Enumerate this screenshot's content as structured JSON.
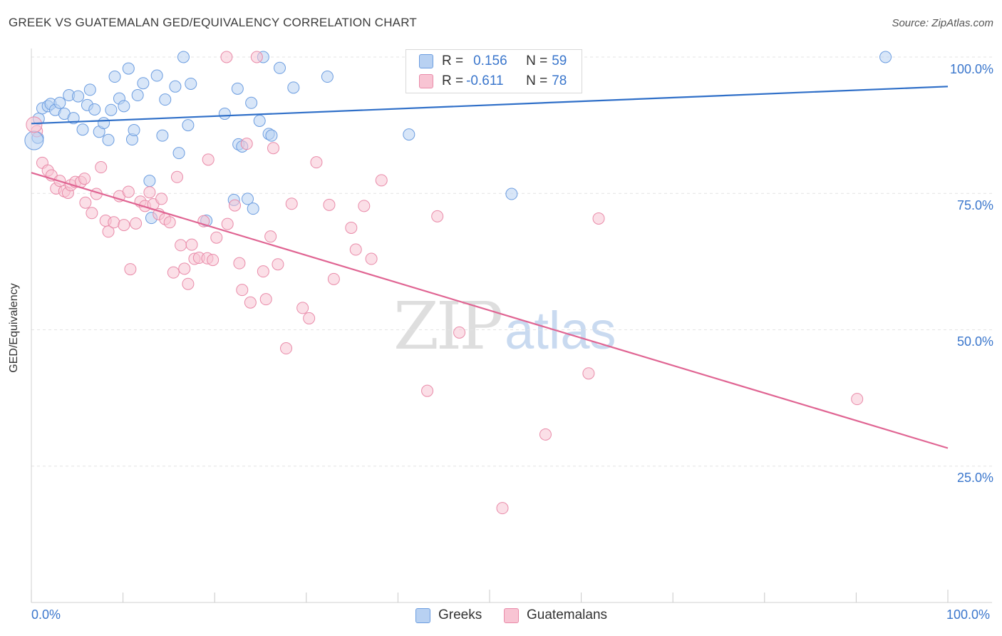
{
  "title": "GREEK VS GUATEMALAN GED/EQUIVALENCY CORRELATION CHART",
  "source": "Source: ZipAtlas.com",
  "watermark": {
    "zip": "ZIP",
    "atlas": "atlas"
  },
  "legend_top": {
    "rows": [
      {
        "r_label": "R = ",
        "r_value": "0.156",
        "n_label": "N = ",
        "n_value": "59",
        "color": "#6c9de0"
      },
      {
        "r_label": "R = ",
        "r_value": "-0.611",
        "n_label": "N = ",
        "n_value": "78",
        "color": "#e98ba9"
      }
    ]
  },
  "bottom_legend": {
    "greeks": "Greeks",
    "guatemalans": "Guatemalans"
  },
  "chart_data": {
    "type": "scatter",
    "title": "GREEK VS GUATEMALAN GED/EQUIVALENCY CORRELATION CHART",
    "xlabel": "",
    "ylabel": "GED/Equivalency",
    "xlim": [
      0,
      100
    ],
    "ylim": [
      0,
      100
    ],
    "x_tick_labels": [
      "0.0%",
      "100.0%"
    ],
    "y_tick_labels": [
      "100.0%",
      "75.0%",
      "50.0%",
      "25.0%"
    ],
    "y_ticks": [
      100,
      75,
      50,
      25
    ],
    "grid": true,
    "legend": "top-center",
    "series": [
      {
        "name": "Greeks",
        "color": "#6c9de0",
        "trend": {
          "x": [
            0,
            100
          ],
          "y": [
            87.8,
            94.6
          ]
        },
        "points": [
          [
            0.8,
            88.7
          ],
          [
            0.7,
            85.2
          ],
          [
            1.2,
            90.6
          ],
          [
            1.8,
            91.0
          ],
          [
            2.1,
            91.4
          ],
          [
            2.6,
            90.3
          ],
          [
            3.1,
            91.6
          ],
          [
            3.6,
            89.6
          ],
          [
            4.1,
            93.0
          ],
          [
            4.6,
            88.8
          ],
          [
            5.1,
            92.8
          ],
          [
            5.6,
            86.7
          ],
          [
            6.1,
            91.2
          ],
          [
            6.4,
            94.0
          ],
          [
            6.9,
            90.4
          ],
          [
            7.4,
            86.3
          ],
          [
            7.9,
            87.9
          ],
          [
            8.4,
            84.8
          ],
          [
            8.7,
            90.3
          ],
          [
            9.1,
            96.4
          ],
          [
            9.6,
            92.4
          ],
          [
            10.1,
            91.0
          ],
          [
            10.6,
            97.9
          ],
          [
            11.0,
            84.9
          ],
          [
            11.2,
            86.6
          ],
          [
            11.6,
            93.0
          ],
          [
            12.2,
            95.2
          ],
          [
            12.9,
            77.3
          ],
          [
            13.1,
            70.5
          ],
          [
            13.7,
            96.6
          ],
          [
            14.3,
            85.6
          ],
          [
            14.6,
            92.2
          ],
          [
            15.7,
            94.6
          ],
          [
            16.1,
            82.4
          ],
          [
            16.6,
            100.0
          ],
          [
            17.1,
            87.5
          ],
          [
            17.4,
            95.1
          ],
          [
            19.1,
            70.0
          ],
          [
            21.1,
            89.6
          ],
          [
            22.1,
            73.8
          ],
          [
            22.5,
            94.2
          ],
          [
            22.6,
            84.0
          ],
          [
            23.0,
            83.6
          ],
          [
            23.6,
            74.0
          ],
          [
            24.0,
            91.6
          ],
          [
            24.2,
            72.2
          ],
          [
            24.9,
            88.3
          ],
          [
            25.3,
            100.0
          ],
          [
            25.9,
            85.9
          ],
          [
            26.2,
            85.6
          ],
          [
            27.1,
            98.0
          ],
          [
            28.6,
            94.4
          ],
          [
            32.3,
            96.4
          ],
          [
            41.9,
            97.7
          ],
          [
            41.2,
            85.8
          ],
          [
            52.4,
            74.9
          ],
          [
            52.7,
            99.6
          ],
          [
            56.9,
            99.6
          ],
          [
            93.2,
            100.0
          ]
        ]
      },
      {
        "name": "Guatemalans",
        "color": "#e98ba9",
        "trend": {
          "x": [
            0,
            100
          ],
          "y": [
            78.8,
            28.3
          ]
        },
        "points": [
          [
            0.6,
            86.4
          ],
          [
            1.2,
            80.6
          ],
          [
            1.8,
            79.2
          ],
          [
            2.2,
            78.3
          ],
          [
            2.7,
            75.9
          ],
          [
            3.1,
            77.3
          ],
          [
            3.6,
            75.4
          ],
          [
            4.0,
            75.1
          ],
          [
            4.3,
            76.5
          ],
          [
            4.8,
            77.1
          ],
          [
            5.4,
            77.1
          ],
          [
            5.8,
            77.7
          ],
          [
            5.9,
            73.3
          ],
          [
            6.6,
            71.4
          ],
          [
            7.1,
            74.9
          ],
          [
            7.6,
            79.8
          ],
          [
            8.1,
            70.0
          ],
          [
            8.4,
            68.0
          ],
          [
            9.0,
            69.7
          ],
          [
            9.6,
            74.5
          ],
          [
            10.1,
            69.2
          ],
          [
            10.6,
            75.3
          ],
          [
            10.8,
            61.1
          ],
          [
            11.4,
            69.5
          ],
          [
            11.9,
            73.5
          ],
          [
            12.4,
            72.7
          ],
          [
            12.9,
            75.2
          ],
          [
            13.3,
            73.0
          ],
          [
            13.9,
            71.2
          ],
          [
            14.2,
            74.0
          ],
          [
            14.6,
            70.3
          ],
          [
            15.1,
            69.7
          ],
          [
            15.5,
            60.5
          ],
          [
            15.9,
            78.0
          ],
          [
            16.3,
            65.5
          ],
          [
            16.7,
            61.2
          ],
          [
            17.1,
            58.4
          ],
          [
            17.5,
            65.6
          ],
          [
            17.8,
            63.0
          ],
          [
            18.3,
            63.2
          ],
          [
            18.8,
            69.9
          ],
          [
            19.2,
            63.1
          ],
          [
            19.3,
            81.2
          ],
          [
            19.8,
            62.8
          ],
          [
            20.2,
            66.9
          ],
          [
            21.4,
            69.4
          ],
          [
            22.2,
            72.8
          ],
          [
            22.7,
            62.2
          ],
          [
            23.0,
            57.3
          ],
          [
            23.5,
            84.1
          ],
          [
            23.9,
            55.0
          ],
          [
            24.6,
            100.0
          ],
          [
            25.3,
            60.7
          ],
          [
            25.6,
            55.6
          ],
          [
            26.1,
            67.1
          ],
          [
            26.4,
            83.3
          ],
          [
            26.9,
            62.0
          ],
          [
            27.8,
            46.6
          ],
          [
            28.4,
            73.1
          ],
          [
            29.6,
            54.0
          ],
          [
            30.3,
            52.1
          ],
          [
            31.1,
            80.7
          ],
          [
            32.5,
            72.9
          ],
          [
            33.0,
            59.3
          ],
          [
            34.9,
            68.7
          ],
          [
            35.4,
            64.7
          ],
          [
            36.3,
            72.7
          ],
          [
            37.1,
            63.0
          ],
          [
            38.2,
            77.4
          ],
          [
            43.2,
            38.8
          ],
          [
            44.3,
            70.8
          ],
          [
            46.7,
            49.5
          ],
          [
            51.4,
            17.3
          ],
          [
            56.1,
            30.8
          ],
          [
            60.8,
            42.0
          ],
          [
            61.9,
            70.4
          ],
          [
            90.1,
            37.3
          ],
          [
            21.3,
            100.0
          ]
        ]
      }
    ]
  }
}
